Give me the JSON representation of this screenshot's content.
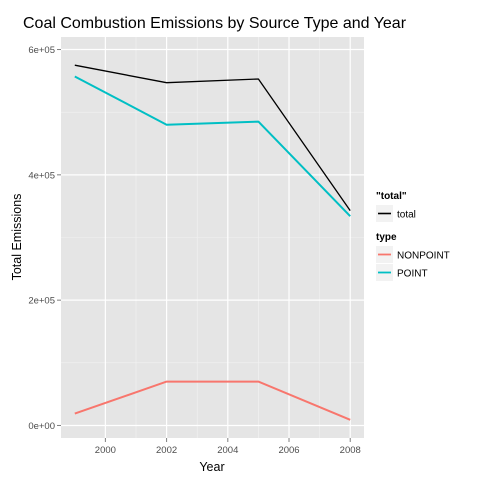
{
  "chart_data": {
    "type": "line",
    "title": "Coal Combustion Emissions by Source Type and Year",
    "xlabel": "Year",
    "ylabel": "Total Emissions",
    "x": [
      1999,
      2002,
      2005,
      2008
    ],
    "xlim": [
      1998.55,
      2008.45
    ],
    "ylim": [
      -20000,
      620000
    ],
    "x_ticks": [
      2000,
      2002,
      2004,
      2006,
      2008
    ],
    "x_tick_labels": [
      "2000",
      "2002",
      "2004",
      "2006",
      "2008"
    ],
    "y_ticks": [
      0,
      200000,
      400000,
      600000
    ],
    "y_tick_labels": [
      "0e+00",
      "2e+05",
      "4e+05",
      "6e+05"
    ],
    "grid": true,
    "legend_placement": "right",
    "series": [
      {
        "name": "total",
        "group": "\"total\"",
        "color": "#000000",
        "values": [
          575000,
          547000,
          553000,
          343000
        ]
      },
      {
        "name": "NONPOINT",
        "group": "type",
        "color": "#f8766d",
        "values": [
          19000,
          70000,
          70000,
          9000
        ]
      },
      {
        "name": "POINT",
        "group": "type",
        "color": "#00bfc4",
        "values": [
          557000,
          480000,
          485000,
          334000
        ]
      }
    ],
    "legends": [
      {
        "title": "\"total\"",
        "entries": [
          "total"
        ]
      },
      {
        "title": "type",
        "entries": [
          "NONPOINT",
          "POINT"
        ]
      }
    ]
  }
}
